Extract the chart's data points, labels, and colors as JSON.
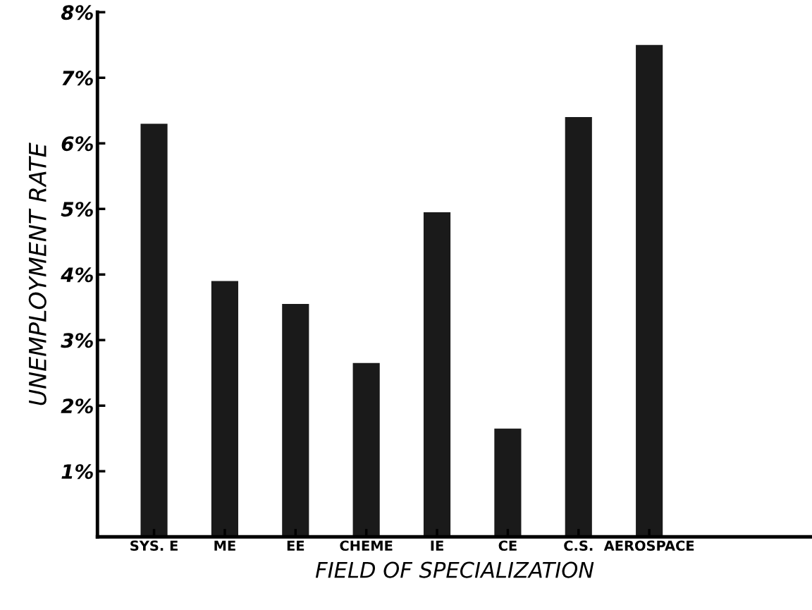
{
  "chart_data": {
    "type": "bar",
    "xlabel": "FIELD OF SPECIALIZATION",
    "ylabel": "UNEMPLOYMENT RATE",
    "categories": [
      "SYS. E",
      "ME",
      "EE",
      "CHEME",
      "IE",
      "CE",
      "C.S.",
      "AEROSPACE"
    ],
    "values": [
      6.3,
      3.9,
      3.55,
      2.65,
      4.95,
      1.65,
      6.4,
      7.5
    ],
    "color": "#1a1a1a",
    "ylim": [
      0,
      8
    ],
    "yticks": [
      {
        "value": 1,
        "label": "1%"
      },
      {
        "value": 2,
        "label": "2%"
      },
      {
        "value": 3,
        "label": "3%"
      },
      {
        "value": 4,
        "label": "4%"
      },
      {
        "value": 5,
        "label": "5%"
      },
      {
        "value": 6,
        "label": "6%"
      },
      {
        "value": 7,
        "label": "7%"
      },
      {
        "value": 8,
        "label": "8%"
      }
    ],
    "grid": false,
    "legend": false
  }
}
